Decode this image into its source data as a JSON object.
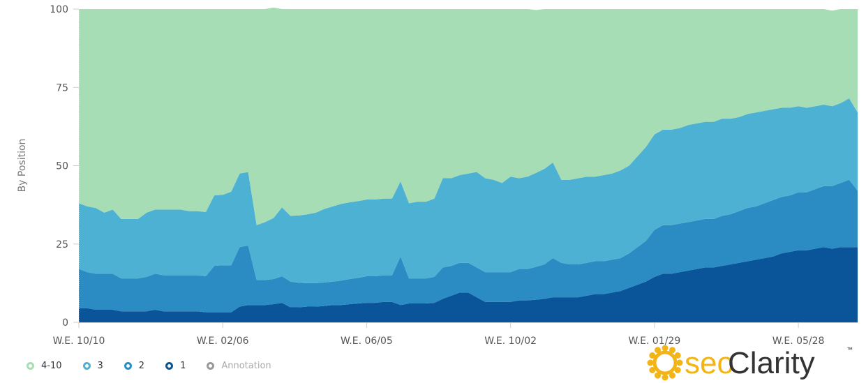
{
  "chart_data": {
    "type": "area",
    "stacked": true,
    "ylabel": "By Position",
    "ylim": [
      0,
      100
    ],
    "yticks": [
      0,
      25,
      50,
      75,
      100
    ],
    "xtick_labels": [
      "W.E. 10/10",
      "W.E. 02/06",
      "W.E. 06/05",
      "W.E. 10/02",
      "W.E. 01/29",
      "W.E. 05/28"
    ],
    "xtick_indices": [
      0,
      17,
      34,
      51,
      68,
      85
    ],
    "grid": false,
    "legend_position": "bottom-left",
    "series": [
      {
        "name": "1",
        "color": "#0a5499",
        "values": [
          4.5,
          4.5,
          4,
          4,
          4,
          3.5,
          3.5,
          3.5,
          3.5,
          4,
          3.5,
          3.5,
          3.5,
          3.5,
          3.5,
          3.2,
          3.2,
          3.2,
          3.2,
          5,
          5.5,
          5.5,
          5.5,
          5.8,
          6.2,
          4.8,
          4.8,
          5,
          5,
          5.2,
          5.5,
          5.5,
          5.8,
          6,
          6.2,
          6.2,
          6.5,
          6.5,
          5.5,
          6,
          6,
          6,
          6.2,
          7.5,
          8.5,
          9.5,
          9.5,
          8,
          6.5,
          6.5,
          6.5,
          6.5,
          7,
          7,
          7.2,
          7.5,
          8,
          8,
          8,
          8,
          8.5,
          9,
          9,
          9.5,
          10,
          11,
          12,
          13,
          14.5,
          15.5,
          15.5,
          16,
          16.5,
          17,
          17.5,
          17.5,
          18,
          18.5,
          19,
          19.5,
          20,
          20.5,
          21,
          22,
          22.5,
          23,
          23,
          23.5,
          24,
          23.5,
          24,
          24,
          24
        ]
      },
      {
        "name": "2",
        "color": "#2a8cc3",
        "values": [
          12.5,
          11.5,
          11.5,
          11.5,
          11.5,
          10.5,
          10.5,
          10.5,
          11,
          11.5,
          11.5,
          11.5,
          11.5,
          11.5,
          11.5,
          11.5,
          14.8,
          15,
          15,
          19,
          19,
          8,
          8,
          8,
          8.5,
          8.2,
          7.8,
          7.5,
          7.5,
          7.5,
          7.5,
          7.8,
          8,
          8.2,
          8.5,
          8.5,
          8.5,
          8.5,
          15.5,
          8,
          8,
          8,
          8.3,
          10,
          9.5,
          9.5,
          9.5,
          9.5,
          9.5,
          9.5,
          9.5,
          9.5,
          10,
          10,
          10.5,
          11,
          12.5,
          11,
          10.5,
          10.5,
          10.5,
          10.5,
          10.5,
          10.5,
          10.5,
          11,
          12,
          13,
          15,
          15.5,
          15.5,
          15.5,
          15.5,
          15.5,
          15.5,
          15.5,
          16,
          16,
          16.5,
          17,
          17,
          17.5,
          18,
          18,
          18,
          18.5,
          18.5,
          19,
          19.5,
          20,
          20.5,
          21.5,
          18
        ]
      },
      {
        "name": "3",
        "color": "#4db1d4",
        "values": [
          21,
          21,
          21,
          19.5,
          20.5,
          19,
          19,
          19,
          20.5,
          20.5,
          21,
          21,
          21,
          20.5,
          20.5,
          20.5,
          22.5,
          22.5,
          23.5,
          23.5,
          23.5,
          17.5,
          18.5,
          19.5,
          22,
          21,
          21.5,
          22,
          22.5,
          23.5,
          24,
          24.5,
          24.5,
          24.5,
          24.5,
          24.5,
          24.5,
          24.5,
          24,
          24,
          24.5,
          24.5,
          25,
          28.5,
          28,
          28,
          28.5,
          30.5,
          30,
          29.5,
          28.5,
          30.5,
          29,
          29.5,
          30,
          30.5,
          30.5,
          26.5,
          27,
          27.5,
          27.5,
          27,
          27.5,
          27.5,
          28,
          28,
          29,
          30,
          30.5,
          30.5,
          30.5,
          30.5,
          31,
          31,
          31,
          31,
          31,
          30.5,
          30,
          30,
          30,
          29.5,
          29,
          28.5,
          28,
          27.5,
          27,
          26.5,
          26,
          25.5,
          25.5,
          26,
          25
        ]
      },
      {
        "name": "4-10",
        "color": "#a7ddb5",
        "values": [
          62,
          63,
          63.5,
          65,
          64,
          67,
          67,
          67,
          65,
          64,
          64,
          64,
          64,
          64.5,
          64.5,
          64.8,
          59.5,
          59.3,
          58.3,
          52.5,
          52,
          69,
          68,
          67.2,
          63.3,
          66,
          65.9,
          65.5,
          65,
          63.8,
          63,
          62.2,
          61.7,
          61.3,
          60.8,
          60.8,
          60.5,
          60.5,
          55,
          62,
          61.5,
          61.5,
          60.5,
          54,
          54,
          53,
          52.5,
          52,
          54,
          54.5,
          55.5,
          53.5,
          54,
          53.5,
          52,
          51,
          49,
          54.5,
          54.5,
          54,
          53.5,
          53.5,
          53,
          52.5,
          51.5,
          50,
          47,
          44,
          40,
          38.5,
          38.5,
          38,
          37,
          36.5,
          36,
          36,
          35,
          35,
          34.5,
          33.5,
          33,
          32.5,
          32,
          31.5,
          31.5,
          31,
          31.5,
          31,
          30.5,
          30.5,
          30,
          28.5,
          33
        ]
      }
    ]
  },
  "legend": {
    "items": [
      {
        "label": "4-10",
        "color": "#a7ddb5"
      },
      {
        "label": "3",
        "color": "#4db1d4"
      },
      {
        "label": "2",
        "color": "#2a8cc3"
      },
      {
        "label": "1",
        "color": "#0a5499"
      },
      {
        "label": "Annotation",
        "color": "#999999"
      }
    ]
  },
  "logo": {
    "text_seo": "seo",
    "text_clarity": "Clarity",
    "tm": "™",
    "colors": {
      "seo": "#f2b417",
      "clarity": "#333333"
    }
  }
}
